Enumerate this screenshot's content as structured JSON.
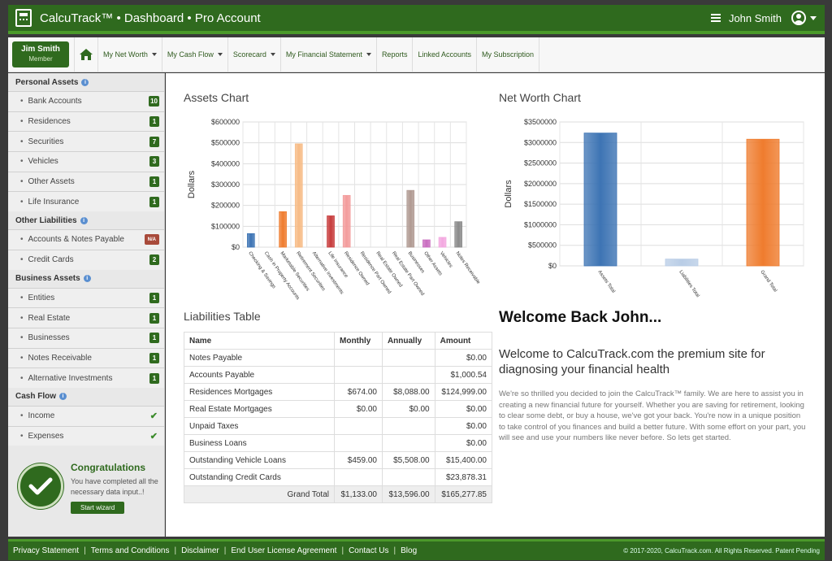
{
  "app": {
    "title": "CalcuTrack™ • Dashboard • Pro Account",
    "user": "John Smith"
  },
  "member": {
    "name": "Jim Smith",
    "role": "Member"
  },
  "nav": [
    {
      "label": "My Net Worth",
      "dropdown": true
    },
    {
      "label": "My Cash Flow",
      "dropdown": true
    },
    {
      "label": "Scorecard",
      "dropdown": true
    },
    {
      "label": "My Financial Statement",
      "dropdown": true
    },
    {
      "label": "Reports",
      "dropdown": false
    },
    {
      "label": "Linked Accounts",
      "dropdown": false
    },
    {
      "label": "My Subscription",
      "dropdown": false
    }
  ],
  "sidebar": {
    "personal": {
      "title": "Personal Assets",
      "items": [
        {
          "label": "Bank Accounts",
          "badge": "10"
        },
        {
          "label": "Residences",
          "badge": "1"
        },
        {
          "label": "Securities",
          "badge": "7"
        },
        {
          "label": "Vehicles",
          "badge": "3"
        },
        {
          "label": "Other Assets",
          "badge": "1"
        },
        {
          "label": "Life Insurance",
          "badge": "1"
        }
      ]
    },
    "liabilities": {
      "title": "Other Liabilities",
      "items": [
        {
          "label": "Accounts & Notes Payable",
          "badge": "N/A"
        },
        {
          "label": "Credit Cards",
          "badge": "2"
        }
      ]
    },
    "business": {
      "title": "Business Assets",
      "items": [
        {
          "label": "Entities",
          "badge": "1"
        },
        {
          "label": "Real Estate",
          "badge": "1"
        },
        {
          "label": "Businesses",
          "badge": "1"
        },
        {
          "label": "Notes Receivable",
          "badge": "1"
        },
        {
          "label": "Alternative Investments",
          "badge": "1"
        }
      ]
    },
    "cashflow": {
      "title": "Cash Flow",
      "items": [
        {
          "label": "Income",
          "check": true
        },
        {
          "label": "Expenses",
          "check": true
        }
      ]
    }
  },
  "congrats": {
    "title": "Congratulations",
    "text": "You have completed all the necessary data input..!",
    "button": "Start wizard"
  },
  "assets_chart": {
    "heading": "Assets Chart",
    "chart_data": {
      "type": "bar",
      "ylabel": "Dollars",
      "ylim": [
        0,
        600000
      ],
      "yticks": [
        "$0",
        "$100000",
        "$200000",
        "$300000",
        "$400000",
        "$500000",
        "$600000"
      ],
      "categories": [
        "Checking & Savings",
        "Cash in Property Accounts",
        "Marketable Securities",
        "Retirement Securities",
        "Alternative Investments",
        "Life Insurance",
        "Residence Owned",
        "Residence Part Owned",
        "Real Estate Owned",
        "Real Estate Part Owned",
        "Businesses",
        "Other Assets",
        "Vehicles",
        "Notes Receivable"
      ],
      "values": [
        65000,
        0,
        170000,
        495000,
        0,
        150000,
        248000,
        0,
        0,
        0,
        272000,
        35000,
        47000,
        122000
      ],
      "colors": [
        "#3d74b4",
        "#cccccc",
        "#ef7c2e",
        "#f7bb85",
        "#cccccc",
        "#c73b3b",
        "#f39b9b",
        "#cccccc",
        "#cccccc",
        "#cccccc",
        "#b09a92",
        "#c96cc0",
        "#f3a8e0",
        "#8a8a8a"
      ]
    }
  },
  "networth_chart": {
    "heading": "Net Worth Chart",
    "chart_data": {
      "type": "bar",
      "ylabel": "Dollars",
      "ylim": [
        0,
        3500000
      ],
      "yticks": [
        "$0",
        "$500000",
        "$1000000",
        "$1500000",
        "$2000000",
        "$2500000",
        "$3000000",
        "$3500000"
      ],
      "categories": [
        "Assets Total",
        "Liabilities Total",
        "Grand Total"
      ],
      "values": [
        3230000,
        165277.85,
        3080000
      ],
      "colors": [
        "#3d74b4",
        "#b9cde6",
        "#ef7c2e"
      ]
    }
  },
  "liabilities": {
    "heading": "Liabilities Table",
    "columns": [
      "Name",
      "Monthly",
      "Annually",
      "Amount"
    ],
    "rows": [
      {
        "name": "Notes Payable",
        "monthly": "",
        "annually": "",
        "amount": "$0.00"
      },
      {
        "name": "Accounts Payable",
        "monthly": "",
        "annually": "",
        "amount": "$1,000.54"
      },
      {
        "name": "Residences Mortgages",
        "monthly": "$674.00",
        "annually": "$8,088.00",
        "amount": "$124,999.00"
      },
      {
        "name": "Real Estate Mortgages",
        "monthly": "$0.00",
        "annually": "$0.00",
        "amount": "$0.00"
      },
      {
        "name": "Unpaid Taxes",
        "monthly": "",
        "annually": "",
        "amount": "$0.00"
      },
      {
        "name": "Business Loans",
        "monthly": "",
        "annually": "",
        "amount": "$0.00"
      },
      {
        "name": "Outstanding Vehicle Loans",
        "monthly": "$459.00",
        "annually": "$5,508.00",
        "amount": "$15,400.00"
      },
      {
        "name": "Outstanding Credit Cards",
        "monthly": "",
        "annually": "",
        "amount": "$23,878.31"
      }
    ],
    "total": {
      "label": "Grand Total",
      "monthly": "$1,133.00",
      "annually": "$13,596.00",
      "amount": "$165,277.85"
    }
  },
  "welcome": {
    "title": "Welcome Back John...",
    "subtitle": "Welcome to CalcuTrack.com the premium site for diagnosing your financial health",
    "body": "We're so thrilled you decided to join the CalcuTrack™ family. We are here to assist you in creating a new financial future for yourself. Whether you are saving for retirement, looking to clear some debt, or buy a house, we've got your back. You're now in a unique position to take control of you finances and build a better future. With some effort on your part, you will see and use your numbers like never before. So lets get started."
  },
  "footer": {
    "links": [
      "Privacy Statement",
      "Terms and Conditions",
      "Disclaimer",
      "End User License Agreement",
      "Contact Us",
      "Blog"
    ],
    "copyright": "© 2017-2020, CalcuTrack.com. All Rights Reserved. Patent Pending"
  }
}
